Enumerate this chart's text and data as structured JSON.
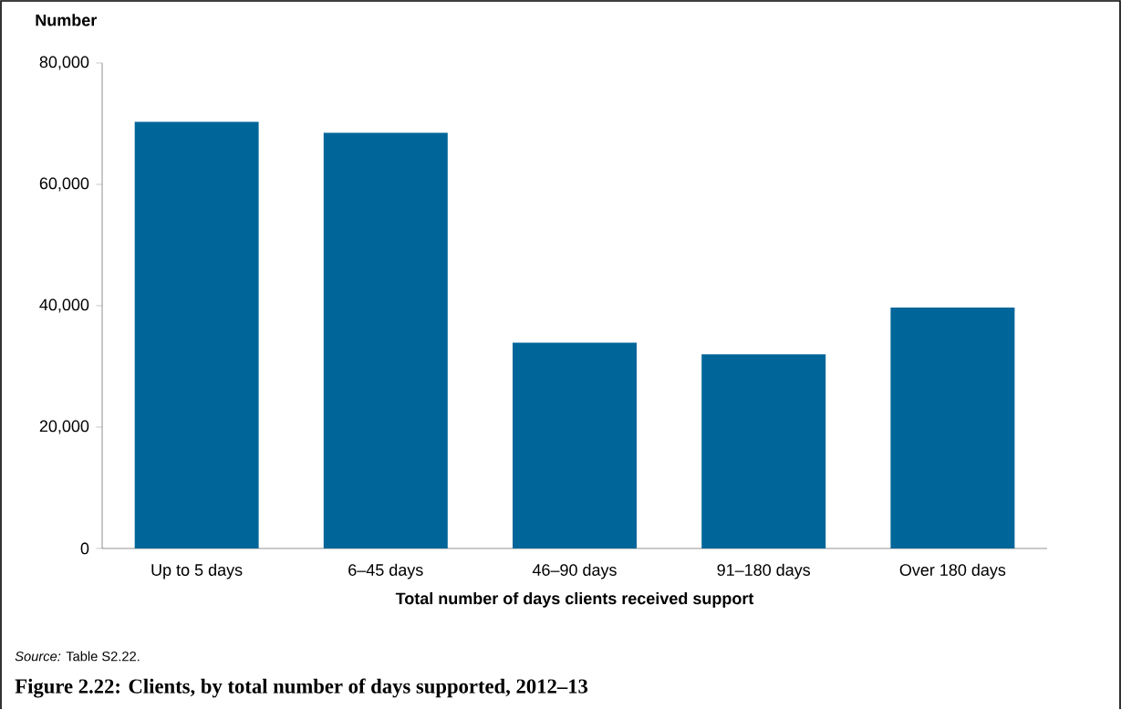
{
  "chart_data": {
    "type": "bar",
    "title": "Figure 2.22: Clients, by total number of days supported, 2012–13",
    "ylabel": "Number",
    "xlabel": "Total number of days clients received support",
    "categories": [
      "Up to 5 days",
      "6–45 days",
      "46–90 days",
      "91–180 days",
      "Over 180 days"
    ],
    "values": [
      70300,
      68500,
      33900,
      32000,
      39700
    ],
    "color": "#006699",
    "ylim": [
      0,
      80000
    ],
    "yticks": [
      0,
      {
        "value": 20000,
        "label": "20,000"
      },
      {
        "value": 40000,
        "label": "40,000"
      },
      {
        "value": 60000,
        "label": "60,000"
      },
      {
        "value": 80000,
        "label": "80,000"
      }
    ],
    "annotations": [
      "*Source:* Table S2.22."
    ]
  }
}
